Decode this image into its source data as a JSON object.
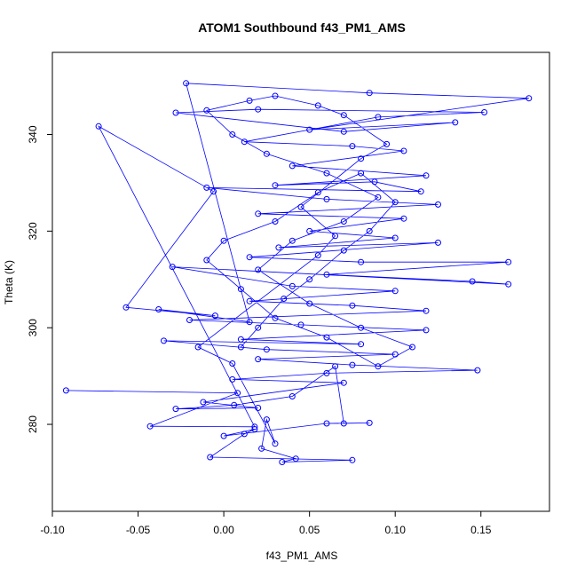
{
  "chart_data": {
    "type": "scatter",
    "title": "ATOM1 Southbound f43_PM1_AMS",
    "xlabel": "f43_PM1_AMS",
    "ylabel": "Theta (K)",
    "xlim": [
      -0.1,
      0.19
    ],
    "ylim": [
      262,
      357
    ],
    "x_ticks": [
      -0.1,
      -0.05,
      0.0,
      0.05,
      0.1,
      0.15
    ],
    "x_tick_labels": [
      "-0.10",
      "-0.05",
      "0.00",
      "0.05",
      "0.10",
      "0.15"
    ],
    "y_ticks": [
      280,
      300,
      320,
      340
    ],
    "y_tick_labels": [
      "280",
      "300",
      "320",
      "340"
    ],
    "grid": false,
    "legend": "none",
    "series_color": "#0000ff",
    "point_style": "open-circle-connected",
    "points": [
      [
        -0.092,
        287
      ],
      [
        0.008,
        286.5
      ],
      [
        -0.043,
        279.6
      ],
      [
        0.018,
        279.5
      ],
      [
        -0.073,
        341.7
      ],
      [
        -0.006,
        328.2
      ],
      [
        -0.057,
        304.2
      ],
      [
        -0.005,
        302.5
      ],
      [
        -0.038,
        303.8
      ],
      [
        0.015,
        301.2
      ],
      [
        -0.022,
        350.6
      ],
      [
        0.085,
        348.6
      ],
      [
        0.178,
        347.5
      ],
      [
        0.05,
        341
      ],
      [
        0.135,
        342.5
      ],
      [
        0.07,
        340.6
      ],
      [
        -0.028,
        344.5
      ],
      [
        0.02,
        345.2
      ],
      [
        0.152,
        344.6
      ],
      [
        0.09,
        343.6
      ],
      [
        0.012,
        338.5
      ],
      [
        0.075,
        337.6
      ],
      [
        0.105,
        336.6
      ],
      [
        0.04,
        333.5
      ],
      [
        0.118,
        331.5
      ],
      [
        0.03,
        329.5
      ],
      [
        0.088,
        330.2
      ],
      [
        0.115,
        328.2
      ],
      [
        -0.01,
        329
      ],
      [
        0.06,
        326.6
      ],
      [
        0.125,
        325.5
      ],
      [
        0.02,
        323.6
      ],
      [
        0.105,
        322.6
      ],
      [
        0.05,
        320
      ],
      [
        0.1,
        318.6
      ],
      [
        0.032,
        316.6
      ],
      [
        0.125,
        317.6
      ],
      [
        0.015,
        314.6
      ],
      [
        0.08,
        313.6
      ],
      [
        0.166,
        313.6
      ],
      [
        0.06,
        311
      ],
      [
        0.145,
        309.6
      ],
      [
        0.166,
        309
      ],
      [
        -0.03,
        312.6
      ],
      [
        0.04,
        308.6
      ],
      [
        0.1,
        307.6
      ],
      [
        0.015,
        305.5
      ],
      [
        0.075,
        304.6
      ],
      [
        0.118,
        303.5
      ],
      [
        -0.02,
        301.6
      ],
      [
        0.045,
        300.6
      ],
      [
        0.118,
        299.5
      ],
      [
        0.01,
        297.6
      ],
      [
        0.08,
        296.6
      ],
      [
        -0.035,
        297.3
      ],
      [
        0.025,
        295.5
      ],
      [
        0.1,
        294.5
      ],
      [
        0.02,
        293.5
      ],
      [
        0.075,
        292.3
      ],
      [
        0.148,
        291.2
      ],
      [
        0.06,
        290.6
      ],
      [
        0.005,
        289.3
      ],
      [
        0.07,
        288.6
      ],
      [
        -0.012,
        284.6
      ],
      [
        0.02,
        283.4
      ],
      [
        -0.028,
        283.2
      ],
      [
        0.006,
        284
      ],
      [
        0.04,
        285.8
      ],
      [
        0.065,
        292
      ],
      [
        0.07,
        280.2
      ],
      [
        0.085,
        280.3
      ],
      [
        0.06,
        280.2
      ],
      [
        0.0,
        277.6
      ],
      [
        0.018,
        279
      ],
      [
        0.012,
        278
      ],
      [
        -0.008,
        273.2
      ],
      [
        0.075,
        272.6
      ],
      [
        0.034,
        272.2
      ],
      [
        0.042,
        272.9
      ],
      [
        0.022,
        275
      ],
      [
        0.025,
        281
      ],
      [
        0.03,
        276
      ],
      [
        0.005,
        292.6
      ],
      [
        -0.015,
        296
      ],
      [
        0.055,
        315
      ],
      [
        0.065,
        319
      ],
      [
        0.045,
        325
      ],
      [
        0.08,
        335
      ],
      [
        0.095,
        338
      ],
      [
        0.07,
        344
      ],
      [
        0.055,
        346
      ],
      [
        0.03,
        348
      ],
      [
        0.015,
        347
      ],
      [
        -0.01,
        345
      ],
      [
        0.005,
        340
      ],
      [
        0.025,
        336
      ],
      [
        0.06,
        332
      ],
      [
        0.09,
        327
      ],
      [
        0.07,
        322
      ],
      [
        0.04,
        318
      ],
      [
        0.02,
        312
      ],
      [
        0.05,
        305
      ],
      [
        0.08,
        300
      ],
      [
        0.11,
        296
      ],
      [
        0.09,
        292
      ],
      [
        0.06,
        298
      ],
      [
        0.03,
        302
      ],
      [
        0.01,
        308
      ],
      [
        -0.01,
        314
      ],
      [
        0.0,
        318
      ],
      [
        0.03,
        322
      ],
      [
        0.055,
        328
      ],
      [
        0.08,
        332
      ],
      [
        0.1,
        326
      ],
      [
        0.085,
        320
      ],
      [
        0.07,
        316
      ],
      [
        0.05,
        310
      ],
      [
        0.035,
        306
      ],
      [
        0.02,
        300
      ],
      [
        0.01,
        296
      ]
    ]
  }
}
